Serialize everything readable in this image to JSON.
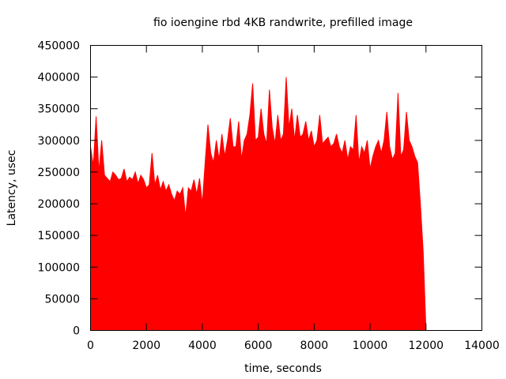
{
  "chart_data": {
    "type": "area",
    "title": "fio ioengine rbd 4KB randwrite, prefilled image",
    "xlabel": "time, seconds",
    "ylabel": "Latency, usec",
    "xlim": [
      0,
      14000
    ],
    "ylim": [
      0,
      450000
    ],
    "x_ticks": [
      0,
      2000,
      4000,
      6000,
      8000,
      10000,
      12000,
      14000
    ],
    "y_ticks": [
      0,
      50000,
      100000,
      150000,
      200000,
      250000,
      300000,
      350000,
      400000,
      450000
    ],
    "x_tick_labels": [
      "0",
      "2000",
      "4000",
      "6000",
      "8000",
      "10000",
      "12000",
      "14000"
    ],
    "y_tick_labels": [
      "0",
      "50000",
      "100000",
      "150000",
      "200000",
      "250000",
      "300000",
      "350000",
      "400000",
      "450000"
    ],
    "grid": false,
    "legend": "none",
    "color": "#ff0000",
    "series": [
      {
        "x": [
          0,
          100,
          200,
          300,
          400,
          500,
          600,
          700,
          800,
          900,
          1000,
          1100,
          1200,
          1300,
          1400,
          1500,
          1600,
          1700,
          1800,
          1900,
          2000,
          2100,
          2200,
          2300,
          2400,
          2500,
          2600,
          2700,
          2800,
          2900,
          3000,
          3100,
          3200,
          3300,
          3400,
          3500,
          3600,
          3700,
          3800,
          3900,
          4000,
          4100,
          4200,
          4300,
          4400,
          4500,
          4600,
          4700,
          4800,
          4900,
          5000,
          5100,
          5200,
          5300,
          5400,
          5500,
          5600,
          5700,
          5800,
          5900,
          6000,
          6100,
          6200,
          6300,
          6400,
          6500,
          6600,
          6700,
          6800,
          6900,
          7000,
          7100,
          7200,
          7300,
          7400,
          7500,
          7600,
          7700,
          7800,
          7900,
          8000,
          8100,
          8200,
          8300,
          8400,
          8500,
          8600,
          8700,
          8800,
          8900,
          9000,
          9100,
          9200,
          9300,
          9400,
          9500,
          9600,
          9700,
          9800,
          9900,
          10000,
          10100,
          10200,
          10300,
          10400,
          10500,
          10600,
          10700,
          10800,
          10900,
          11000,
          11100,
          11200,
          11300,
          11400,
          11500,
          11600,
          11700,
          11800,
          11900,
          12000
        ],
        "values": [
          290000,
          260000,
          338000,
          250000,
          300000,
          245000,
          240000,
          235000,
          250000,
          245000,
          238000,
          240000,
          255000,
          235000,
          242000,
          238000,
          250000,
          232000,
          245000,
          238000,
          225000,
          230000,
          280000,
          230000,
          245000,
          222000,
          235000,
          220000,
          230000,
          215000,
          205000,
          220000,
          215000,
          225000,
          180000,
          225000,
          220000,
          238000,
          215000,
          240000,
          200000,
          265000,
          325000,
          280000,
          265000,
          300000,
          270000,
          310000,
          275000,
          300000,
          335000,
          290000,
          290000,
          330000,
          270000,
          300000,
          310000,
          340000,
          390000,
          300000,
          305000,
          350000,
          310000,
          295000,
          380000,
          320000,
          295000,
          340000,
          300000,
          310000,
          400000,
          320000,
          350000,
          300000,
          340000,
          305000,
          310000,
          330000,
          300000,
          315000,
          290000,
          300000,
          340000,
          295000,
          300000,
          305000,
          290000,
          295000,
          310000,
          290000,
          280000,
          300000,
          270000,
          290000,
          285000,
          340000,
          265000,
          290000,
          280000,
          300000,
          255000,
          275000,
          290000,
          300000,
          280000,
          300000,
          345000,
          290000,
          270000,
          280000,
          375000,
          275000,
          285000,
          345000,
          300000,
          290000,
          275000,
          265000,
          200000,
          125000,
          0
        ]
      }
    ]
  }
}
